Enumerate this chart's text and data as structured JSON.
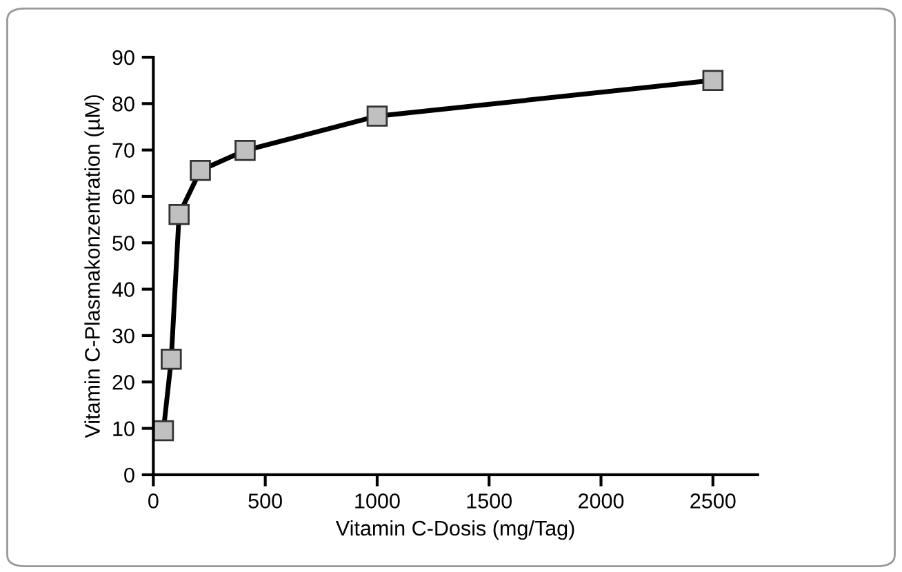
{
  "chart_data": {
    "type": "line",
    "xlabel": "Vitamin C-Dosis (mg/Tag)",
    "ylabel": "Vitamin C-Plasmakonzentration (µM)",
    "x": [
      45,
      80,
      115,
      210,
      410,
      1000,
      2500
    ],
    "series": [
      {
        "color": "#000000",
        "values": [
          9.5,
          24.9,
          56.1,
          65.6,
          69.9,
          77.3,
          85
        ]
      }
    ],
    "xlim": [
      0,
      2700
    ],
    "xticks": [
      0,
      500,
      1000,
      1500,
      2000,
      2500
    ],
    "ylim": [
      0,
      90
    ],
    "yticks": [
      0,
      10,
      20,
      30,
      40,
      50,
      60,
      70,
      80,
      90
    ],
    "grid": false,
    "legend": false,
    "marker": "square",
    "line_style": "solid"
  }
}
